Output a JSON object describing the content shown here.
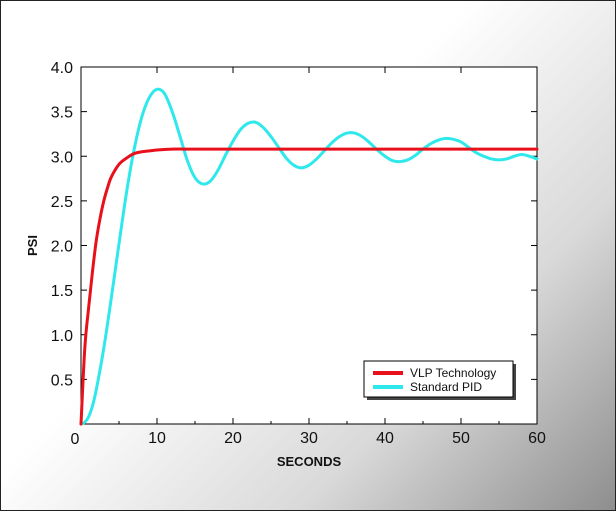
{
  "chart_data": {
    "type": "line",
    "title": "",
    "xlabel": "SECONDS",
    "ylabel": "PSI",
    "xlim": [
      0,
      60
    ],
    "ylim": [
      0,
      4.0
    ],
    "x_ticks": [
      0,
      10,
      20,
      30,
      40,
      50,
      60
    ],
    "x_tick_labels": [
      "0",
      "10",
      "20",
      "30",
      "40",
      "50",
      "60"
    ],
    "y_ticks": [
      0.5,
      1.0,
      1.5,
      2.0,
      2.5,
      3.0,
      3.5,
      4.0
    ],
    "y_tick_labels": [
      "0.5",
      "1.0",
      "1.5",
      "2.0",
      "2.5",
      "3.0",
      "3.5",
      "4.0"
    ],
    "grid": false,
    "legend_position": "bottom-right",
    "series": [
      {
        "name": "VLP Technology",
        "color": "#e8101a",
        "x": [
          0,
          0.5,
          1,
          1.5,
          2,
          2.5,
          3,
          3.5,
          4,
          5,
          6,
          7,
          8,
          9,
          10,
          12,
          15,
          20,
          30,
          40,
          50,
          60
        ],
        "y": [
          0,
          0.85,
          1.3,
          1.7,
          2.05,
          2.3,
          2.5,
          2.65,
          2.77,
          2.91,
          2.98,
          3.03,
          3.05,
          3.06,
          3.07,
          3.08,
          3.08,
          3.08,
          3.08,
          3.08,
          3.08,
          3.08
        ]
      },
      {
        "name": "Standard PID",
        "color": "#2fe8ec",
        "x": [
          0,
          0.5,
          1,
          1.5,
          2,
          3,
          4,
          5,
          6,
          7,
          8,
          9,
          10,
          11,
          12,
          13,
          14,
          15,
          16,
          17,
          18,
          19,
          20,
          21,
          22,
          23,
          24,
          25,
          26,
          27,
          28,
          29,
          30,
          31,
          32,
          33,
          34,
          35,
          36,
          37,
          38,
          39,
          40,
          41,
          42,
          43,
          44,
          45,
          46,
          47,
          48,
          49,
          50,
          51,
          52,
          53,
          54,
          55,
          56,
          57,
          58,
          59,
          60
        ],
        "y": [
          0,
          0.02,
          0.08,
          0.2,
          0.38,
          0.85,
          1.42,
          2.02,
          2.6,
          3.08,
          3.44,
          3.66,
          3.75,
          3.7,
          3.5,
          3.23,
          2.95,
          2.76,
          2.69,
          2.72,
          2.84,
          3.01,
          3.17,
          3.3,
          3.37,
          3.38,
          3.32,
          3.22,
          3.1,
          2.98,
          2.9,
          2.87,
          2.9,
          2.97,
          3.06,
          3.15,
          3.22,
          3.26,
          3.26,
          3.22,
          3.15,
          3.07,
          3.0,
          2.95,
          2.94,
          2.96,
          3.01,
          3.08,
          3.14,
          3.18,
          3.2,
          3.19,
          3.16,
          3.1,
          3.04,
          3.0,
          2.97,
          2.96,
          2.97,
          3.0,
          3.02,
          3.0,
          2.97
        ]
      }
    ]
  }
}
